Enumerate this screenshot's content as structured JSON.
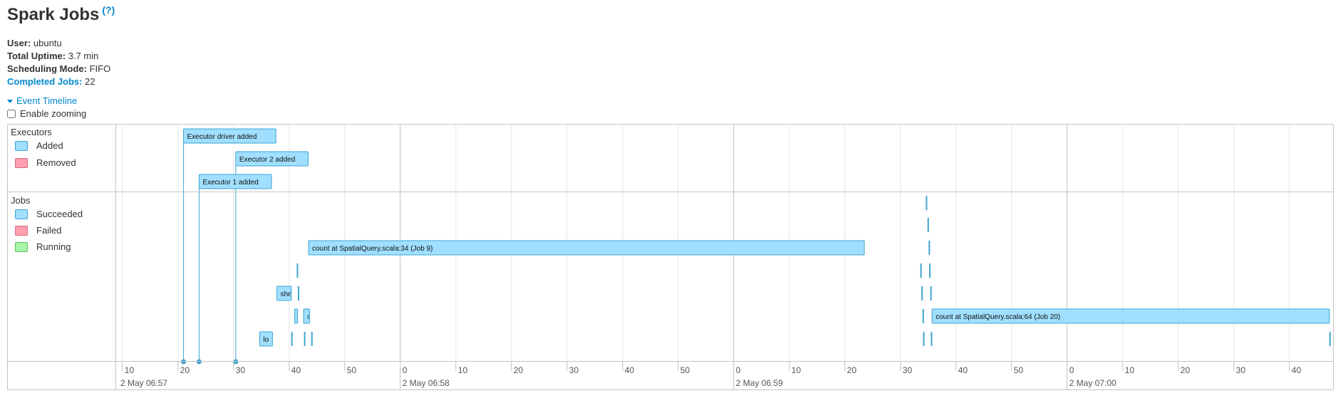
{
  "page": {
    "title": "Spark Jobs",
    "help": "(?)"
  },
  "summary": {
    "user_label": "User:",
    "user_value": "ubuntu",
    "uptime_label": "Total Uptime:",
    "uptime_value": "3.7 min",
    "scheduling_label": "Scheduling Mode:",
    "scheduling_value": "FIFO",
    "completed_label": "Completed Jobs:",
    "completed_value": "22"
  },
  "timeline": {
    "toggle_label": "Event Timeline",
    "zoom_label": "Enable zooming",
    "executors_group": "Executors",
    "executors_legend": [
      "Added",
      "Removed"
    ],
    "jobs_group": "Jobs",
    "jobs_legend": [
      "Succeeded",
      "Failed",
      "Running"
    ]
  },
  "colors": {
    "succeeded_fill": "#a0dfff",
    "succeeded_border": "#3ea4d0",
    "failed_fill": "#ff9fb0",
    "running_fill": "#a9f5a9",
    "grid": "#e5e5e5",
    "major_grid": "#bfbfbf"
  },
  "chart_data": {
    "type": "timeline",
    "x_unit": "seconds",
    "x_range": [
      9,
      47.5
    ],
    "minute_labels": [
      "2 May 06:57",
      "2 May 06:58",
      "2 May 06:59",
      "2 May 07:00"
    ],
    "tick_labels": [
      "10",
      "20",
      "30",
      "40",
      "50",
      "0",
      "10",
      "20",
      "30",
      "40",
      "50",
      "0",
      "10",
      "20",
      "30",
      "40",
      "50",
      "0",
      "10",
      "20",
      "30",
      "40"
    ],
    "executor_events": [
      {
        "label": "Executor driver added",
        "t": 21.0,
        "row": 0
      },
      {
        "label": "Executor 2 added",
        "t": 30.4,
        "row": 1
      },
      {
        "label": "Executor 1 added",
        "t": 23.8,
        "row": 2
      }
    ],
    "jobs": [
      {
        "label": "",
        "start": 154.7,
        "end": 154.9,
        "row": 0
      },
      {
        "label": "",
        "start": 155.0,
        "end": 155.1,
        "row": 1
      },
      {
        "label": "count at SpatialQuery.scala:34 (Job 9)",
        "start": 43.5,
        "end": 143.5,
        "row": 2
      },
      {
        "label": "",
        "start": 155.2,
        "end": 155.4,
        "row": 2
      },
      {
        "label": "",
        "start": 41.5,
        "end": 41.7,
        "row": 3
      },
      {
        "label": "",
        "start": 153.7,
        "end": 153.9,
        "row": 3
      },
      {
        "label": "",
        "start": 155.3,
        "end": 155.5,
        "row": 3
      },
      {
        "label": "she",
        "start": 37.8,
        "end": 40.4,
        "row": 4
      },
      {
        "label": "",
        "start": 41.7,
        "end": 41.9,
        "row": 4
      },
      {
        "label": "",
        "start": 153.9,
        "end": 154.1,
        "row": 4
      },
      {
        "label": "",
        "start": 155.5,
        "end": 155.7,
        "row": 4
      },
      {
        "label": "",
        "start": 41.0,
        "end": 41.5,
        "row": 5
      },
      {
        "label": "s",
        "start": 42.6,
        "end": 43.7,
        "row": 5
      },
      {
        "label": "",
        "start": 154.1,
        "end": 154.3,
        "row": 5
      },
      {
        "label": "count at SpatialQuery.scala:64 (Job 20)",
        "start": 155.7,
        "end": 227.2,
        "row": 5
      },
      {
        "label": "lo",
        "start": 34.7,
        "end": 37.0,
        "row": 6
      },
      {
        "label": "",
        "start": 40.5,
        "end": 40.7,
        "row": 6
      },
      {
        "label": "",
        "start": 42.8,
        "end": 43.0,
        "row": 6
      },
      {
        "label": "",
        "start": 44.1,
        "end": 44.3,
        "row": 6
      },
      {
        "label": "",
        "start": 154.2,
        "end": 154.4,
        "row": 6
      },
      {
        "label": "",
        "start": 155.6,
        "end": 155.8,
        "row": 6
      },
      {
        "label": "",
        "start": 227.3,
        "end": 227.5,
        "row": 6
      }
    ]
  }
}
